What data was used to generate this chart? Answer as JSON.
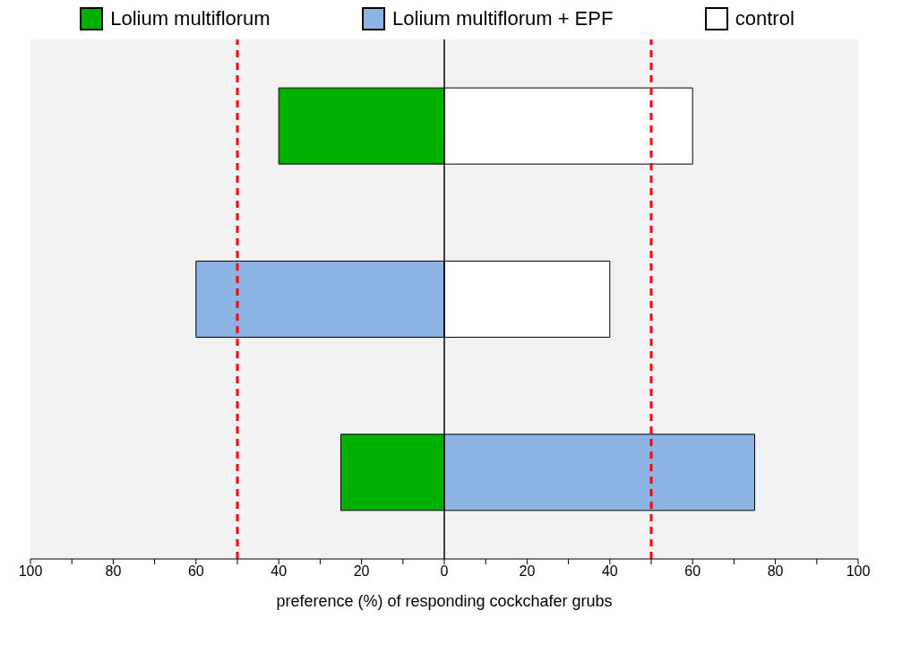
{
  "chart_data": {
    "type": "bar",
    "orientation": "horizontal",
    "stacked": true,
    "xlabel": "preference (%) of responding cockchafer grubs",
    "categories": [
      null,
      null,
      null
    ],
    "series": [
      {
        "name": "Lolium multiflorum",
        "color": "#00b000",
        "values": [
          -40,
          null,
          -25
        ]
      },
      {
        "name": "Lolium multiflorum + EPF",
        "color": "#8db3e2",
        "values": [
          null,
          -60,
          75
        ]
      },
      {
        "name": "control",
        "color": "#ffffff",
        "values": [
          60,
          40,
          null
        ]
      }
    ],
    "xlim": [
      -100,
      100
    ],
    "xticks": [
      {
        "value": -100,
        "label": "100"
      },
      {
        "value": -90,
        "label": null
      },
      {
        "value": -80,
        "label": "80"
      },
      {
        "value": -70,
        "label": null
      },
      {
        "value": -60,
        "label": "60"
      },
      {
        "value": -50,
        "label": null
      },
      {
        "value": -40,
        "label": "40"
      },
      {
        "value": -30,
        "label": null
      },
      {
        "value": -20,
        "label": "20"
      },
      {
        "value": -10,
        "label": null
      },
      0,
      {
        "value": 10,
        "label": null
      },
      20,
      {
        "value": 30,
        "label": null
      },
      40,
      {
        "value": 50,
        "label": null
      },
      60,
      {
        "value": 70,
        "label": null
      },
      80,
      {
        "value": 90,
        "label": null
      },
      100
    ],
    "ref_lines": [
      {
        "axis": "x",
        "value": 0,
        "color": "#000000",
        "line_style": "solid"
      },
      {
        "axis": "x",
        "value": -50,
        "color": "#ff0000",
        "line_style": "dashed"
      },
      {
        "axis": "x",
        "value": 50,
        "color": "#ff0000",
        "line_style": "dashed"
      }
    ],
    "tick_labels": "x",
    "legend": "top"
  }
}
